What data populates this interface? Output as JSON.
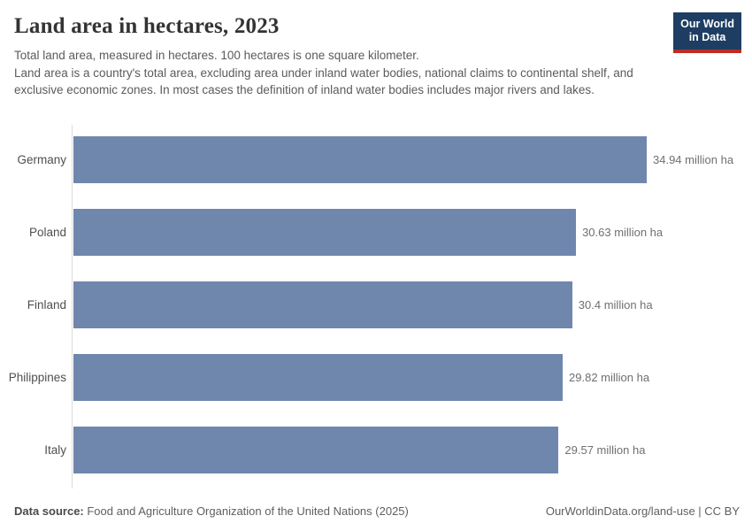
{
  "header": {
    "title": "Land area in hectares, 2023",
    "subtitle_line1": "Total land area, measured in hectares. 100 hectares is one square kilometer.",
    "subtitle_line2": "Land area is a country's total area, excluding area under inland water bodies, national claims to continental shelf, and exclusive economic zones. In most cases the definition of inland water bodies includes major rivers and lakes.",
    "logo": {
      "line1": "Our World",
      "line2": "in Data",
      "bg_color": "#1d3d63",
      "accent_color": "#bc2d25"
    }
  },
  "chart_data": {
    "type": "bar",
    "orientation": "horizontal",
    "title": "Land area in hectares, 2023",
    "xlabel": "",
    "ylabel": "",
    "categories": [
      "Germany",
      "Poland",
      "Finland",
      "Philippines",
      "Italy"
    ],
    "values": [
      34.94,
      30.63,
      30.4,
      29.82,
      29.57
    ],
    "value_labels": [
      "34.94 million ha",
      "30.63 million ha",
      "30.4 million ha",
      "29.82 million ha",
      "29.57 million ha"
    ],
    "unit": "million ha",
    "xlim": [
      0,
      34.94
    ],
    "grid": false,
    "legend": "none",
    "bar_color": "#6f87ad",
    "axis_line_color": "#dcdcdc"
  },
  "footer": {
    "source_label": "Data source:",
    "source_text": " Food and Agriculture Organization of the United Nations (2025)",
    "credit": "OurWorldinData.org/land-use | CC BY"
  }
}
